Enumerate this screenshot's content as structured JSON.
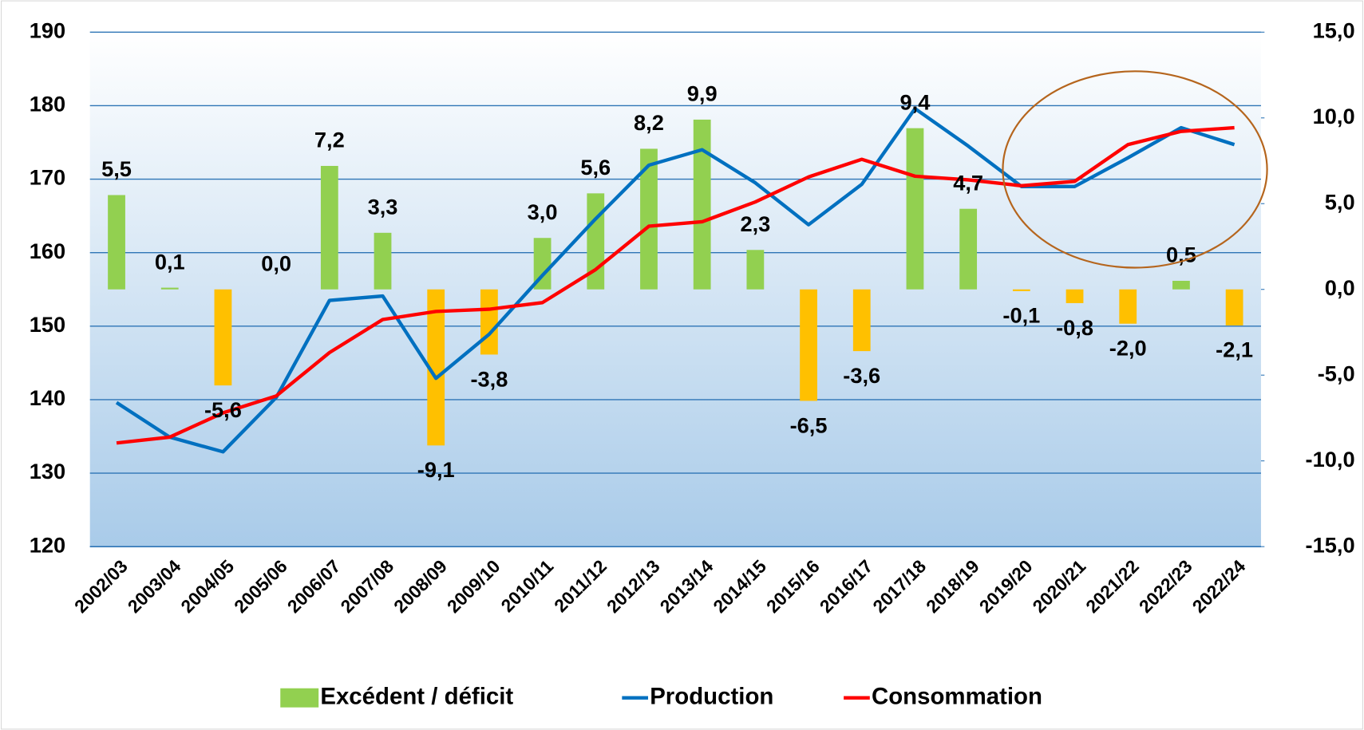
{
  "chart_data": {
    "type": "combo",
    "categories": [
      "2002/03",
      "2003/04",
      "2004/05",
      "2005/06",
      "2006/07",
      "2007/08",
      "2008/09",
      "2009/10",
      "2010/11",
      "2011/12",
      "2012/13",
      "2013/14",
      "2014/15",
      "2015/16",
      "2016/17",
      "2017/18",
      "2018/19",
      "2019/20",
      "2020/21",
      "2021/22",
      "2022/23",
      "2022/24"
    ],
    "ylim": [
      120,
      190
    ],
    "yticks": [
      120,
      130,
      140,
      150,
      160,
      170,
      180,
      190
    ],
    "y2lim": [
      -15,
      15
    ],
    "y2ticks": [
      {
        "value": -15,
        "label": "-15,0"
      },
      {
        "value": -10,
        "label": "-10,0"
      },
      {
        "value": -5,
        "label": "-5,0"
      },
      {
        "value": 0,
        "label": "0,0"
      },
      {
        "value": 5,
        "label": "5,0"
      },
      {
        "value": 10,
        "label": "10,0"
      },
      {
        "value": 15,
        "label": "15,0"
      }
    ],
    "y2_negative_tick_color": "#ff0000",
    "grid": true,
    "legend": "bottom",
    "series": [
      {
        "name": "Excédent / déficit",
        "type": "bar",
        "axis": "y2",
        "color": "#92d050",
        "negative_color": "#ffc000",
        "values": [
          5.5,
          0.1,
          -5.6,
          0.0,
          7.2,
          3.3,
          -9.1,
          -3.8,
          3.0,
          5.6,
          8.2,
          9.9,
          2.3,
          -6.5,
          -3.6,
          9.4,
          4.7,
          -0.1,
          -0.8,
          -2.0,
          0.5,
          -2.1
        ],
        "value_labels": [
          "5,5",
          "0,1",
          "-5,6",
          "0,0",
          "7,2",
          "3,3",
          "-9,1",
          "-3,8",
          "3,0",
          "5,6",
          "8,2",
          "9,9",
          "2,3",
          "-6,5",
          "-3,6",
          "9,4",
          "4,7",
          "-0,1",
          "-0,8",
          "-2,0",
          "0,5",
          "-2,1"
        ]
      },
      {
        "name": "Production",
        "type": "line",
        "color": "#0070c0",
        "values": [
          139.6,
          134.9,
          132.9,
          140.3,
          153.5,
          154.1,
          142.9,
          148.9,
          156.9,
          164.6,
          171.9,
          174.0,
          169.5,
          163.8,
          169.3,
          179.6,
          174.5,
          169.0,
          169.0,
          172.9,
          177.0,
          174.7
        ]
      },
      {
        "name": "Consommation",
        "type": "line",
        "color": "#ff0000",
        "values": [
          134.1,
          134.9,
          138.2,
          140.5,
          146.4,
          150.9,
          152.0,
          152.3,
          153.2,
          157.7,
          163.6,
          164.2,
          166.9,
          170.3,
          172.7,
          170.4,
          169.9,
          169.1,
          169.7,
          174.7,
          176.5,
          177.0
        ]
      }
    ]
  }
}
